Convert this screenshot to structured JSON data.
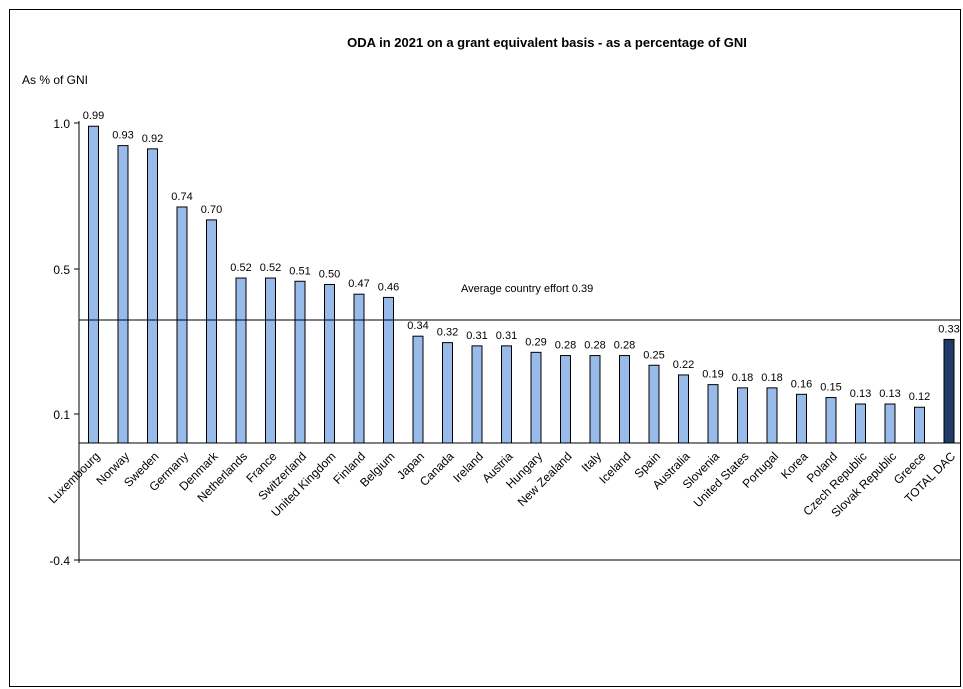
{
  "chart_data": {
    "type": "bar",
    "title": "ODA in 2021 on a grant equivalent basis - as a percentage of GNI",
    "ylabel": "As % of GNI",
    "yticks": [
      "1.0",
      "0.5",
      "0.1",
      "-0.4"
    ],
    "ylim": [
      -0.4,
      1.0
    ],
    "grid": false,
    "categories": [
      "Luxembourg",
      "Norway",
      "Sweden",
      "Germany",
      "Denmark",
      "Netherlands",
      "France",
      "Switzerland",
      "United Kingdom",
      "Finland",
      "Belgium",
      "Japan",
      "Canada",
      "Ireland",
      "Austria",
      "Hungary",
      "New Zealand",
      "Italy",
      "Iceland",
      "Spain",
      "Australia",
      "Slovenia",
      "United States",
      "Portugal",
      "Korea",
      "Poland",
      "Czech Republic",
      "Slovak Republic",
      "Greece",
      "TOTAL DAC"
    ],
    "values": [
      0.99,
      0.93,
      0.92,
      0.74,
      0.7,
      0.52,
      0.52,
      0.51,
      0.5,
      0.47,
      0.46,
      0.34,
      0.32,
      0.31,
      0.31,
      0.29,
      0.28,
      0.28,
      0.28,
      0.25,
      0.22,
      0.19,
      0.18,
      0.18,
      0.16,
      0.15,
      0.13,
      0.13,
      0.12,
      0.33
    ],
    "value_labels": [
      "0.99",
      "0.93",
      "0.92",
      "0.74",
      "0.70",
      "0.52",
      "0.52",
      "0.51",
      "0.50",
      "0.47",
      "0.46",
      "0.34",
      "0.32",
      "0.31",
      "0.31",
      "0.29",
      "0.28",
      "0.28",
      "0.28",
      "0.25",
      "0.22",
      "0.19",
      "0.18",
      "0.18",
      "0.16",
      "0.15",
      "0.13",
      "0.13",
      "0.12",
      "0.33"
    ],
    "highlight_category": "TOTAL DAC",
    "reference_line": {
      "value": 0.39,
      "label": "Average country effort 0.39"
    },
    "colors": {
      "bar": "#99bbea",
      "highlight": "#1f3b66",
      "stroke": "#000000"
    }
  }
}
